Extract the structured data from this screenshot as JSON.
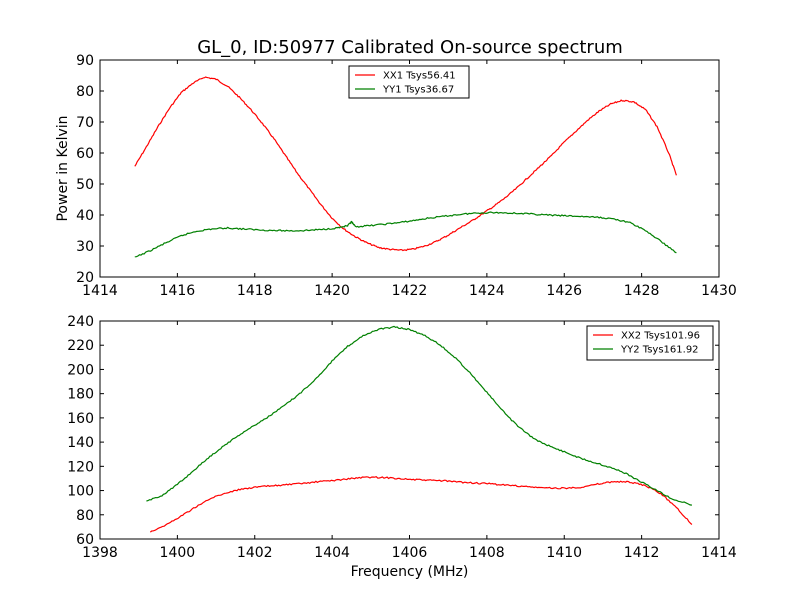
{
  "figure": {
    "title": "GL_0, ID:50977 Calibrated On-source spectrum"
  },
  "colors": {
    "red_series": "#ff0000",
    "green_series": "#008000",
    "axes": "#000000",
    "background": "#ffffff"
  },
  "chart_data": [
    {
      "type": "line",
      "title": "GL_0, ID:50977 Calibrated On-source spectrum",
      "xlabel": "",
      "ylabel": "Power in Kelvin",
      "xlim": [
        1414,
        1430
      ],
      "ylim": [
        20,
        90
      ],
      "xticks": [
        1414,
        1416,
        1418,
        1420,
        1422,
        1424,
        1426,
        1428,
        1430
      ],
      "yticks": [
        20,
        30,
        40,
        50,
        60,
        70,
        80,
        90
      ],
      "grid": false,
      "legend_position": "top-center",
      "series": [
        {
          "name": "XX1 Tsys56.41",
          "color": "#ff0000",
          "x": [
            1414.9,
            1415.2,
            1415.5,
            1415.8,
            1416.1,
            1416.4,
            1416.7,
            1417.0,
            1417.3,
            1417.6,
            1417.9,
            1418.2,
            1418.5,
            1418.8,
            1419.1,
            1419.4,
            1419.7,
            1420.0,
            1420.3,
            1420.6,
            1420.9,
            1421.2,
            1421.5,
            1421.8,
            1422.1,
            1422.4,
            1422.7,
            1423.0,
            1423.3,
            1423.6,
            1423.9,
            1424.2,
            1424.5,
            1424.8,
            1425.1,
            1425.4,
            1425.7,
            1426.0,
            1426.3,
            1426.6,
            1426.9,
            1427.2,
            1427.5,
            1427.8,
            1428.1,
            1428.4,
            1428.7,
            1428.9
          ],
          "values": [
            55.7,
            62,
            68.5,
            74.5,
            79.5,
            82.5,
            84.5,
            83.8,
            81.5,
            78,
            74,
            69.5,
            64.5,
            59,
            53.5,
            48.5,
            43.5,
            39,
            35.5,
            33,
            31,
            29.5,
            28.9,
            28.6,
            29,
            30,
            31.5,
            33.5,
            35.8,
            38,
            40.5,
            43,
            45.8,
            49,
            52.5,
            56,
            59.5,
            63.5,
            67,
            70.5,
            73.5,
            75.8,
            77,
            76.5,
            74,
            68.5,
            60,
            52.8
          ]
        },
        {
          "name": "YY1 Tsys36.67",
          "color": "#008000",
          "x": [
            1414.9,
            1415.3,
            1415.7,
            1416.1,
            1416.5,
            1416.9,
            1417.3,
            1417.7,
            1418.1,
            1418.5,
            1418.9,
            1419.3,
            1419.7,
            1420.1,
            1420.4,
            1420.5,
            1420.6,
            1420.9,
            1421.3,
            1421.7,
            1422.1,
            1422.5,
            1422.9,
            1423.3,
            1423.7,
            1424.1,
            1424.5,
            1424.9,
            1425.3,
            1425.7,
            1426.1,
            1426.5,
            1426.9,
            1427.3,
            1427.7,
            1428.1,
            1428.5,
            1428.9
          ],
          "values": [
            26.3,
            28.5,
            31,
            33.3,
            34.8,
            35.5,
            35.8,
            35.5,
            35.2,
            35,
            34.9,
            35,
            35.3,
            35.8,
            36.5,
            37.8,
            36.2,
            36.5,
            37,
            37.5,
            38.2,
            39,
            39.6,
            40.2,
            40.6,
            40.8,
            40.7,
            40.5,
            40.2,
            39.9,
            39.7,
            39.5,
            39.2,
            38.7,
            37.5,
            35,
            31.5,
            27.8
          ]
        }
      ]
    },
    {
      "type": "line",
      "title": "",
      "xlabel": "Frequency (MHz)",
      "ylabel": "",
      "xlim": [
        1398,
        1414
      ],
      "ylim": [
        60,
        240
      ],
      "xticks": [
        1398,
        1400,
        1402,
        1404,
        1406,
        1408,
        1410,
        1412,
        1414
      ],
      "yticks": [
        60,
        80,
        100,
        120,
        140,
        160,
        180,
        200,
        220,
        240
      ],
      "grid": false,
      "legend_position": "top-right",
      "series": [
        {
          "name": "XX2 Tsys101.96",
          "color": "#ff0000",
          "x": [
            1399.3,
            1399.7,
            1400.1,
            1400.5,
            1400.9,
            1401.3,
            1401.7,
            1402.1,
            1402.5,
            1402.9,
            1403.3,
            1403.7,
            1404.1,
            1404.5,
            1404.9,
            1405.3,
            1405.7,
            1406.1,
            1406.5,
            1406.9,
            1407.3,
            1407.7,
            1408.1,
            1408.5,
            1408.9,
            1409.3,
            1409.7,
            1410.1,
            1410.5,
            1410.9,
            1411.3,
            1411.7,
            1412.1,
            1412.5,
            1412.9,
            1413.3
          ],
          "values": [
            66,
            71.5,
            79,
            87,
            94,
            98.5,
            101.5,
            103,
            104,
            105,
            106,
            107.5,
            108.5,
            110,
            111,
            110.8,
            110,
            109,
            108.5,
            108,
            107,
            106.2,
            105.5,
            104.5,
            103.5,
            102.5,
            102,
            102,
            103,
            105.5,
            107.5,
            107,
            104,
            97.5,
            86,
            72
          ]
        },
        {
          "name": "YY2 Tsys161.92",
          "color": "#008000",
          "x": [
            1399.2,
            1399.6,
            1400.0,
            1400.4,
            1400.8,
            1401.2,
            1401.6,
            1402.0,
            1402.4,
            1402.8,
            1403.2,
            1403.6,
            1404.0,
            1404.4,
            1404.8,
            1405.2,
            1405.6,
            1406.0,
            1406.4,
            1406.8,
            1407.2,
            1407.6,
            1408.0,
            1408.4,
            1408.8,
            1409.2,
            1409.6,
            1410.0,
            1410.4,
            1410.8,
            1411.2,
            1411.6,
            1412.0,
            1412.4,
            1412.8,
            1413.3
          ],
          "values": [
            91,
            96,
            105,
            116,
            127,
            137,
            146,
            154,
            162,
            171,
            181,
            193,
            207,
            219,
            228,
            233,
            235,
            233,
            228,
            220,
            209,
            196,
            181,
            166,
            153,
            143,
            137,
            132,
            127,
            123,
            119,
            114,
            107,
            100,
            93,
            88
          ]
        }
      ]
    }
  ]
}
